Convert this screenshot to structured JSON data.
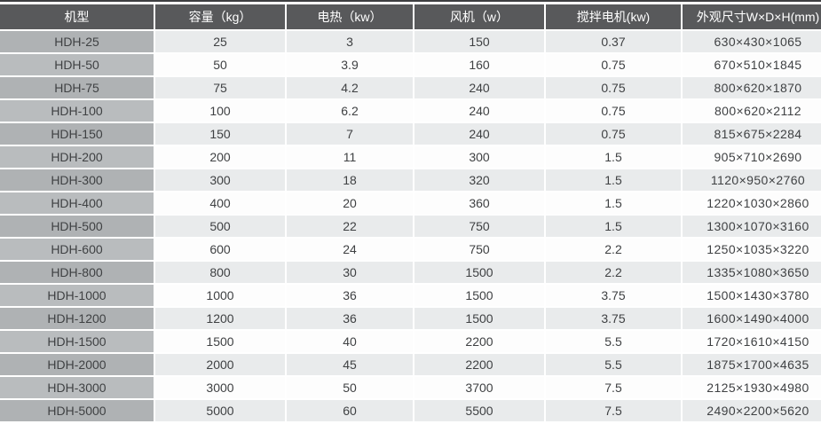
{
  "colors": {
    "header_bg": "#58595b",
    "header_text": "#ffffff",
    "row_odd_bg": "#e9ebec",
    "row_even_bg": "#fdfdfd",
    "model_odd_bg": "#afb2b4",
    "model_even_bg": "#b9bcbe",
    "cell_text": "#3f4143",
    "top_line": "#3e3f41",
    "gutter": "#ffffff"
  },
  "chart_data": {
    "type": "table",
    "title": "",
    "columns": [
      "机型",
      "容量（kg）",
      "电热（kw）",
      "风机（w）",
      "搅拌电机(kw)",
      "外观尺寸W×D×H(mm)"
    ],
    "rows": [
      [
        "HDH-25",
        "25",
        "3",
        "150",
        "0.37",
        "630×430×1065"
      ],
      [
        "HDH-50",
        "50",
        "3.9",
        "160",
        "0.75",
        "670×510×1845"
      ],
      [
        "HDH-75",
        "75",
        "4.2",
        "240",
        "0.75",
        "800×620×1870"
      ],
      [
        "HDH-100",
        "100",
        "6.2",
        "240",
        "0.75",
        "800×620×2112"
      ],
      [
        "HDH-150",
        "150",
        "7",
        "240",
        "0.75",
        "815×675×2284"
      ],
      [
        "HDH-200",
        "200",
        "11",
        "300",
        "1.5",
        "905×710×2690"
      ],
      [
        "HDH-300",
        "300",
        "18",
        "320",
        "1.5",
        "1120×950×2760"
      ],
      [
        "HDH-400",
        "400",
        "20",
        "360",
        "1.5",
        "1220×1030×2860"
      ],
      [
        "HDH-500",
        "500",
        "22",
        "750",
        "1.5",
        "1300×1070×3160"
      ],
      [
        "HDH-600",
        "600",
        "24",
        "750",
        "2.2",
        "1250×1035×3220"
      ],
      [
        "HDH-800",
        "800",
        "30",
        "1500",
        "2.2",
        "1335×1080×3650"
      ],
      [
        "HDH-1000",
        "1000",
        "36",
        "1500",
        "3.75",
        "1500×1430×3780"
      ],
      [
        "HDH-1200",
        "1200",
        "36",
        "1500",
        "3.75",
        "1600×1490×4000"
      ],
      [
        "HDH-1500",
        "1500",
        "40",
        "2200",
        "5.5",
        "1720×1610×4150"
      ],
      [
        "HDH-2000",
        "2000",
        "45",
        "2200",
        "5.5",
        "1875×1700×4635"
      ],
      [
        "HDH-3000",
        "3000",
        "50",
        "3700",
        "7.5",
        "2125×1930×4980"
      ],
      [
        "HDH-5000",
        "5000",
        "60",
        "5500",
        "7.5",
        "2490×2200×5620"
      ]
    ]
  }
}
